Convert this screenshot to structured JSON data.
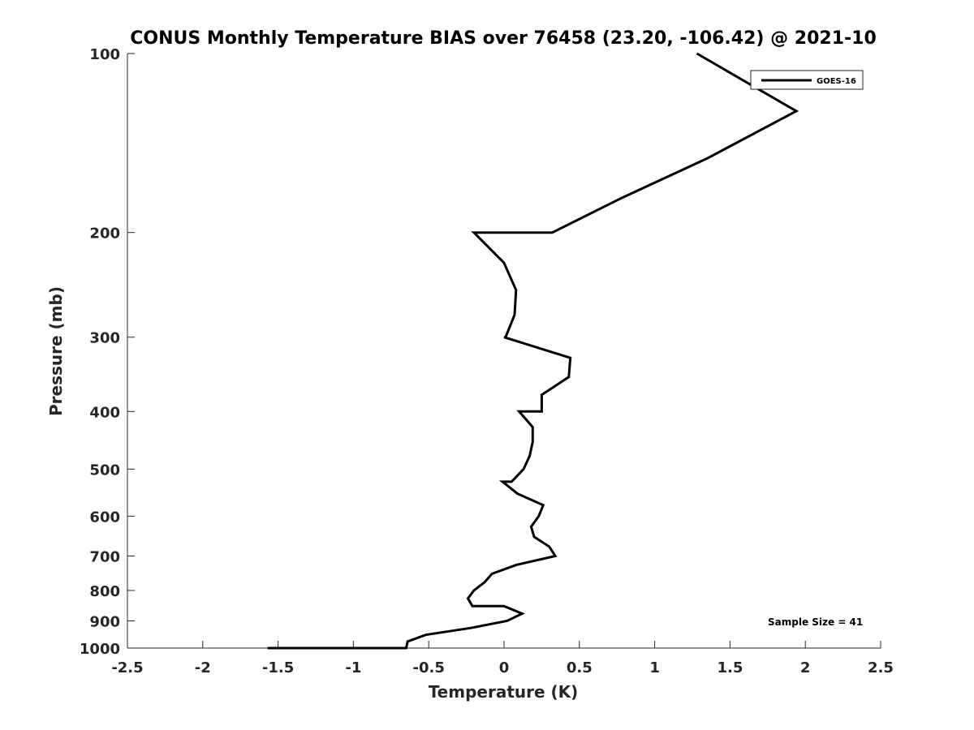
{
  "chart_data": {
    "type": "line",
    "title": "CONUS Monthly Temperature BIAS over 76458 (23.20, -106.42) @ 2021-10",
    "xlabel": "Temperature (K)",
    "ylabel": "Pressure (mb)",
    "xlim": [
      -2.5,
      2.5
    ],
    "ylim": [
      100,
      1000
    ],
    "y_scale": "log",
    "y_reversed": true,
    "x_ticks": [
      -2.5,
      -2,
      -1.5,
      -1,
      -0.5,
      0,
      0.5,
      1,
      1.5,
      2,
      2.5
    ],
    "x_tick_labels": [
      "-2.5",
      "-2",
      "-1.5",
      "-1",
      "-0.5",
      "0",
      "0.5",
      "1",
      "1.5",
      "2",
      "2.5"
    ],
    "y_ticks": [
      100,
      200,
      300,
      400,
      500,
      600,
      700,
      800,
      900,
      1000
    ],
    "y_tick_labels": [
      "100",
      "200",
      "300",
      "400",
      "500",
      "600",
      "700",
      "800",
      "900",
      "1000"
    ],
    "grid": false,
    "legend_position": "top-right",
    "series": [
      {
        "name": "GOES-16",
        "color": "#000000",
        "points": [
          {
            "x": 1.28,
            "p": 100
          },
          {
            "x": 1.94,
            "p": 125
          },
          {
            "x": 1.35,
            "p": 150
          },
          {
            "x": 0.78,
            "p": 175
          },
          {
            "x": 0.32,
            "p": 200
          },
          {
            "x": -0.2,
            "p": 200
          },
          {
            "x": 0.0,
            "p": 225
          },
          {
            "x": 0.08,
            "p": 250
          },
          {
            "x": 0.07,
            "p": 275
          },
          {
            "x": 0.01,
            "p": 300
          },
          {
            "x": 0.0,
            "p": 300
          },
          {
            "x": 0.44,
            "p": 325
          },
          {
            "x": 0.43,
            "p": 350
          },
          {
            "x": 0.25,
            "p": 375
          },
          {
            "x": 0.25,
            "p": 400
          },
          {
            "x": 0.1,
            "p": 400
          },
          {
            "x": 0.19,
            "p": 425
          },
          {
            "x": 0.19,
            "p": 450
          },
          {
            "x": 0.17,
            "p": 475
          },
          {
            "x": 0.13,
            "p": 500
          },
          {
            "x": 0.05,
            "p": 525
          },
          {
            "x": -0.01,
            "p": 525
          },
          {
            "x": 0.09,
            "p": 550
          },
          {
            "x": 0.26,
            "p": 575
          },
          {
            "x": 0.23,
            "p": 600
          },
          {
            "x": 0.18,
            "p": 625
          },
          {
            "x": 0.2,
            "p": 650
          },
          {
            "x": 0.3,
            "p": 675
          },
          {
            "x": 0.34,
            "p": 700
          },
          {
            "x": 0.08,
            "p": 725
          },
          {
            "x": -0.08,
            "p": 750
          },
          {
            "x": -0.13,
            "p": 775
          },
          {
            "x": -0.2,
            "p": 800
          },
          {
            "x": -0.24,
            "p": 825
          },
          {
            "x": -0.21,
            "p": 850
          },
          {
            "x": 0.0,
            "p": 850
          },
          {
            "x": 0.12,
            "p": 875
          },
          {
            "x": 0.02,
            "p": 900
          },
          {
            "x": -0.22,
            "p": 925
          },
          {
            "x": -0.52,
            "p": 950
          },
          {
            "x": -0.64,
            "p": 975
          },
          {
            "x": -0.65,
            "p": 1000
          },
          {
            "x": -1.0,
            "p": 1000
          },
          {
            "x": -1.57,
            "p": 1000
          }
        ]
      }
    ],
    "annotation": "Sample Size = 41"
  }
}
